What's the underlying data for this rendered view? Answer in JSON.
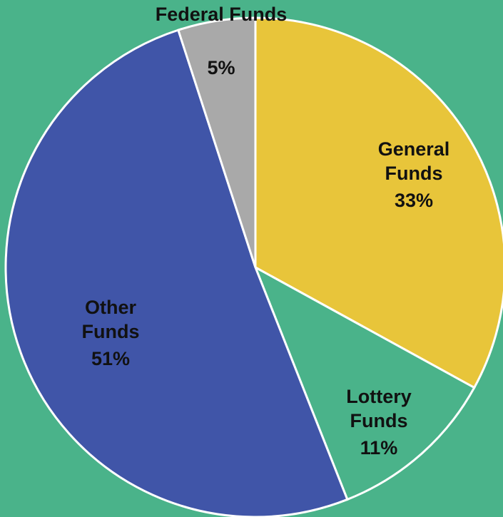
{
  "chart_data": {
    "type": "pie",
    "categories": [
      "General Funds",
      "Lottery Funds",
      "Other Funds",
      "Federal Funds"
    ],
    "values": [
      33,
      11,
      51,
      5
    ],
    "value_labels": [
      "33%",
      "11%",
      "51%",
      "5%"
    ],
    "colors": [
      "#e8c53a",
      "#4ab38a",
      "#4055a8",
      "#a9a9a9"
    ]
  }
}
